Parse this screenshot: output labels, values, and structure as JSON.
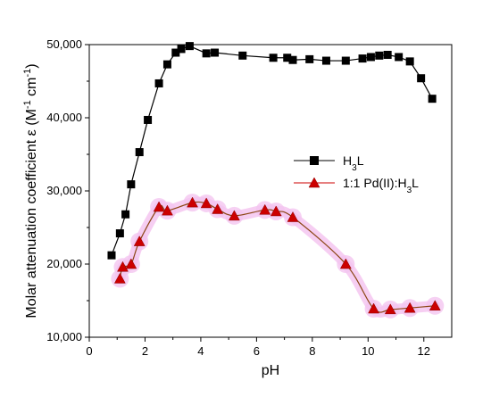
{
  "chart_data": {
    "type": "line",
    "xlabel": "pH",
    "ylabel": {
      "main": "Molar attenuation coefficient ε (M",
      "sup1": "-1",
      "mid": " cm",
      "sup2": "-1",
      "end": ")"
    },
    "xlim": [
      0,
      13
    ],
    "ylim": [
      10000,
      50000
    ],
    "x_ticks": [
      0,
      2,
      4,
      6,
      8,
      10,
      12
    ],
    "y_ticks": [
      10000,
      20000,
      30000,
      40000,
      50000
    ],
    "x_tick_labels": [
      "0",
      "2",
      "4",
      "6",
      "8",
      "10",
      "12"
    ],
    "y_tick_labels": [
      "10,000",
      "20,000",
      "30,000",
      "40,000",
      "50,000"
    ],
    "legend_position": "right-middle",
    "series": [
      {
        "legend": {
          "base": "H",
          "sub": "3",
          "tail": "L"
        },
        "marker": "square",
        "color": "#000000",
        "line_color": "#000000",
        "points": [
          [
            0.8,
            21200
          ],
          [
            1.1,
            24200
          ],
          [
            1.3,
            26800
          ],
          [
            1.5,
            30900
          ],
          [
            1.8,
            35300
          ],
          [
            2.1,
            39700
          ],
          [
            2.5,
            44700
          ],
          [
            2.8,
            47300
          ],
          [
            3.1,
            48900
          ],
          [
            3.3,
            49400
          ],
          [
            3.6,
            49800
          ],
          [
            4.2,
            48800
          ],
          [
            4.5,
            48900
          ],
          [
            5.5,
            48500
          ],
          [
            6.6,
            48200
          ],
          [
            7.1,
            48200
          ],
          [
            7.3,
            47900
          ],
          [
            7.9,
            48000
          ],
          [
            8.5,
            47800
          ],
          [
            9.2,
            47800
          ],
          [
            9.8,
            48100
          ],
          [
            10.1,
            48300
          ],
          [
            10.4,
            48500
          ],
          [
            10.7,
            48600
          ],
          [
            11.1,
            48300
          ],
          [
            11.5,
            47700
          ],
          [
            11.9,
            45400
          ],
          [
            12.3,
            42600
          ]
        ]
      },
      {
        "legend": {
          "base": "1:1 Pd(II):H",
          "sub": "3",
          "tail": "L"
        },
        "marker": "triangle",
        "color": "#cc0000",
        "line_color": "#8b4513",
        "highlight_color": "#f4c6f0",
        "points": [
          [
            1.1,
            18000
          ],
          [
            1.2,
            19600
          ],
          [
            1.5,
            20000
          ],
          [
            1.8,
            23100
          ],
          [
            2.5,
            27800
          ],
          [
            2.8,
            27300
          ],
          [
            3.7,
            28400
          ],
          [
            4.2,
            28300
          ],
          [
            4.6,
            27500
          ],
          [
            5.2,
            26600
          ],
          [
            6.3,
            27400
          ],
          [
            6.7,
            27200
          ],
          [
            7.3,
            26400
          ],
          [
            9.2,
            20000
          ],
          [
            10.2,
            13900
          ],
          [
            10.8,
            13800
          ],
          [
            11.5,
            14000
          ],
          [
            12.4,
            14300
          ]
        ]
      }
    ]
  }
}
